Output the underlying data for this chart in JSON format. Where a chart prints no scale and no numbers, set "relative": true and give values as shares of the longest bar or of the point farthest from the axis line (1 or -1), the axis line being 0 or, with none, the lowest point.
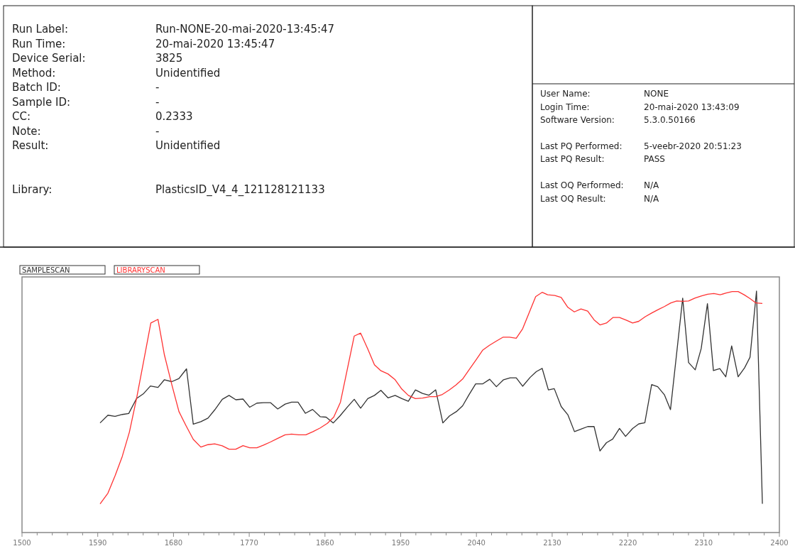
{
  "chart_data": {
    "type": "line",
    "relative": true,
    "legend": "top left",
    "xlim": [
      1500,
      2400
    ],
    "xticks": [
      1500,
      {
        "value": 1518,
        "label": null
      },
      {
        "value": 1536,
        "label": null
      },
      {
        "value": 1554,
        "label": null
      },
      {
        "value": 1572,
        "label": null
      },
      1590,
      {
        "value": 1608,
        "label": null
      },
      {
        "value": 1626,
        "label": null
      },
      {
        "value": 1644,
        "label": null
      },
      {
        "value": 1662,
        "label": null
      },
      1680,
      {
        "value": 1698,
        "label": null
      },
      {
        "value": 1716,
        "label": null
      },
      {
        "value": 1734,
        "label": null
      },
      {
        "value": 1752,
        "label": null
      },
      1770,
      {
        "value": 1788,
        "label": null
      },
      {
        "value": 1806,
        "label": null
      },
      {
        "value": 1824,
        "label": null
      },
      {
        "value": 1842,
        "label": null
      },
      1860,
      {
        "value": 1878,
        "label": null
      },
      {
        "value": 1896,
        "label": null
      },
      {
        "value": 1914,
        "label": null
      },
      {
        "value": 1932,
        "label": null
      },
      1950,
      {
        "value": 1968,
        "label": null
      },
      {
        "value": 1986,
        "label": null
      },
      {
        "value": 2004,
        "label": null
      },
      {
        "value": 2022,
        "label": null
      },
      2040,
      {
        "value": 2058,
        "label": null
      },
      {
        "value": 2076,
        "label": null
      },
      {
        "value": 2094,
        "label": null
      },
      {
        "value": 2112,
        "label": null
      },
      2130,
      {
        "value": 2148,
        "label": null
      },
      {
        "value": 2166,
        "label": null
      },
      {
        "value": 2184,
        "label": null
      },
      {
        "value": 2202,
        "label": null
      },
      2220,
      {
        "value": 2238,
        "label": null
      },
      {
        "value": 2256,
        "label": null
      },
      {
        "value": 2274,
        "label": null
      },
      {
        "value": 2292,
        "label": null
      },
      2310,
      {
        "value": 2328,
        "label": null
      },
      {
        "value": 2346,
        "label": null
      },
      {
        "value": 2364,
        "label": null
      },
      {
        "value": 2382,
        "label": null
      },
      2400
    ],
    "annotations": [
      "Run Label:",
      "Run-NONE-20-mai-2020-13:45:47",
      "Run Time:",
      "20-mai-2020 13:45:47",
      "Device Serial:",
      "3825",
      "Method:",
      "Unidentified",
      "Batch ID:",
      "-",
      "Sample ID:",
      "-",
      "CC:",
      "0.2333",
      "Note:",
      "-",
      "Result:",
      "Unidentified",
      "Library:",
      "PlasticsID_V4_4_121128121133",
      "User Name:",
      "NONE",
      "Login Time:",
      "20-mai-2020 13:43:09",
      "Software Version:",
      "5.3.0.50166",
      "Last PQ Performed:",
      "5-veebr-2020 20:51:23",
      "Last PQ Result:",
      "PASS",
      "Last OQ Performed:",
      "N/A",
      "Last OQ Result:",
      "N/A"
    ],
    "series": [
      {
        "name": "SAMPLESCAN",
        "color": "#333333",
        "x": [
          1592.8,
          1602.1,
          1610.6,
          1619.1,
          1626.8,
          1636.1,
          1644.6,
          1652.6,
          1661.6,
          1669.2,
          1678.0,
          1686.5,
          1695.5,
          1703.5,
          1712.5,
          1721.0,
          1729.0,
          1738.0,
          1746.0,
          1754.1,
          1762.6,
          1770.6,
          1779.1,
          1787.0,
          1795.2,
          1803.9,
          1812.7,
          1820.3,
          1828.0,
          1836.8,
          1845.3,
          1854.3,
          1861.4,
          1869.9,
          1877.8,
          1886.9,
          1894.8,
          1902.4,
          1910.9,
          1918.8,
          1926.5,
          1934.9,
          1943.4,
          1951.4,
          1959.1,
          1967.5,
          1976.0,
          1983.7,
          1991.6,
          2000.1,
          2008.0,
          2016.2,
          2023.6,
          2031.2,
          2039.1,
          2047.6,
          2055.8,
          2063.7,
          2072.2,
          2080.1,
          2087.3,
          2094.9,
          2103.9,
          2111.3,
          2118.1,
          2125.5,
          2132.5,
          2140.7,
          2148.6,
          2156.5,
          2164.2,
          2172.2,
          2179.8,
          2186.8,
          2194.5,
          2201.9,
          2210.0,
          2217.2,
          2225.6,
          2232.9,
          2240.1,
          2248.2,
          2255.4,
          2263.3,
          2270.6,
          2285.1,
          2292.1,
          2300.0,
          2307.1,
          2314.5,
          2321.6,
          2329.2,
          2336.3,
          2343.3,
          2351.0,
          2358.6,
          2365.1,
          2372.8,
          2379.8
        ],
        "values": [
          0.454,
          0.486,
          0.481,
          0.489,
          0.493,
          0.555,
          0.576,
          0.607,
          0.601,
          0.633,
          0.625,
          0.638,
          0.678,
          0.449,
          0.459,
          0.474,
          0.508,
          0.552,
          0.568,
          0.55,
          0.553,
          0.519,
          0.536,
          0.538,
          0.538,
          0.512,
          0.532,
          0.54,
          0.54,
          0.494,
          0.51,
          0.48,
          0.478,
          0.454,
          0.483,
          0.521,
          0.552,
          0.515,
          0.555,
          0.568,
          0.589,
          0.558,
          0.568,
          0.555,
          0.544,
          0.591,
          0.576,
          0.569,
          0.591,
          0.454,
          0.483,
          0.501,
          0.525,
          0.571,
          0.616,
          0.616,
          0.635,
          0.604,
          0.633,
          0.641,
          0.641,
          0.606,
          0.643,
          0.667,
          0.68,
          0.591,
          0.596,
          0.522,
          0.488,
          0.418,
          0.428,
          0.439,
          0.439,
          0.338,
          0.372,
          0.387,
          0.431,
          0.398,
          0.431,
          0.45,
          0.455,
          0.613,
          0.604,
          0.571,
          0.509,
          0.971,
          0.704,
          0.674,
          0.762,
          0.948,
          0.671,
          0.679,
          0.645,
          0.773,
          0.645,
          0.682,
          0.726,
          1,
          0.119
        ]
      },
      {
        "name": "LIBRARYSCAN",
        "color": "#ff3333",
        "x": [
          1592.8,
          1602.1,
          1610.6,
          1619.1,
          1627.6,
          1636.1,
          1644.6,
          1653.1,
          1661.6,
          1669.2,
          1678.0,
          1686.5,
          1695.0,
          1703.5,
          1712.5,
          1721.0,
          1729.0,
          1738.0,
          1746.0,
          1754.1,
          1762.6,
          1770.6,
          1779.1,
          1787.0,
          1795.2,
          1803.9,
          1812.7,
          1820.3,
          1828.8,
          1837.3,
          1845.8,
          1854.3,
          1862.8,
          1870.4,
          1878.4,
          1886.9,
          1894.8,
          1902.4,
          1910.9,
          1918.8,
          1926.5,
          1934.9,
          1943.4,
          1951.4,
          1959.1,
          1967.5,
          1976.0,
          1984.5,
          1991.6,
          1999.5,
          2008.0,
          2015.6,
          2023.6,
          2031.2,
          2039.1,
          2047.6,
          2055.2,
          2063.1,
          2071.4,
          2079.3,
          2087.3,
          2094.9,
          2102.8,
          2110.4,
          2118.1,
          2124.6,
          2133.1,
          2140.7,
          2148.6,
          2156.3,
          2164.2,
          2172.2,
          2179.8,
          2186.8,
          2194.5,
          2202.4,
          2210.0,
          2218.0,
          2225.6,
          2232.9,
          2240.6,
          2248.2,
          2256.2,
          2263.3,
          2271.0,
          2278.0,
          2285.1,
          2292.1,
          2299.5,
          2307.1,
          2314.8,
          2322.1,
          2329.7,
          2336.8,
          2343.9,
          2351.0,
          2358.1,
          2365.1,
          2372.2,
          2379.8
        ],
        "values": [
          0.119,
          0.163,
          0.235,
          0.315,
          0.416,
          0.555,
          0.711,
          0.868,
          0.883,
          0.736,
          0.613,
          0.501,
          0.442,
          0.386,
          0.354,
          0.364,
          0.367,
          0.359,
          0.345,
          0.345,
          0.36,
          0.351,
          0.351,
          0.362,
          0.375,
          0.39,
          0.405,
          0.408,
          0.405,
          0.405,
          0.418,
          0.433,
          0.452,
          0.478,
          0.54,
          0.682,
          0.814,
          0.826,
          0.76,
          0.695,
          0.67,
          0.657,
          0.633,
          0.594,
          0.568,
          0.555,
          0.557,
          0.563,
          0.563,
          0.572,
          0.591,
          0.611,
          0.636,
          0.674,
          0.713,
          0.756,
          0.775,
          0.792,
          0.809,
          0.809,
          0.805,
          0.844,
          0.912,
          0.977,
          0.995,
          0.985,
          0.982,
          0.974,
          0.933,
          0.914,
          0.926,
          0.917,
          0.881,
          0.86,
          0.868,
          0.891,
          0.891,
          0.88,
          0.868,
          0.875,
          0.894,
          0.909,
          0.924,
          0.936,
          0.951,
          0.959,
          0.958,
          0.959,
          0.971,
          0.98,
          0.987,
          0.99,
          0.985,
          0.992,
          0.998,
          0.998,
          0.985,
          0.969,
          0.951,
          0.949
        ]
      }
    ]
  }
}
